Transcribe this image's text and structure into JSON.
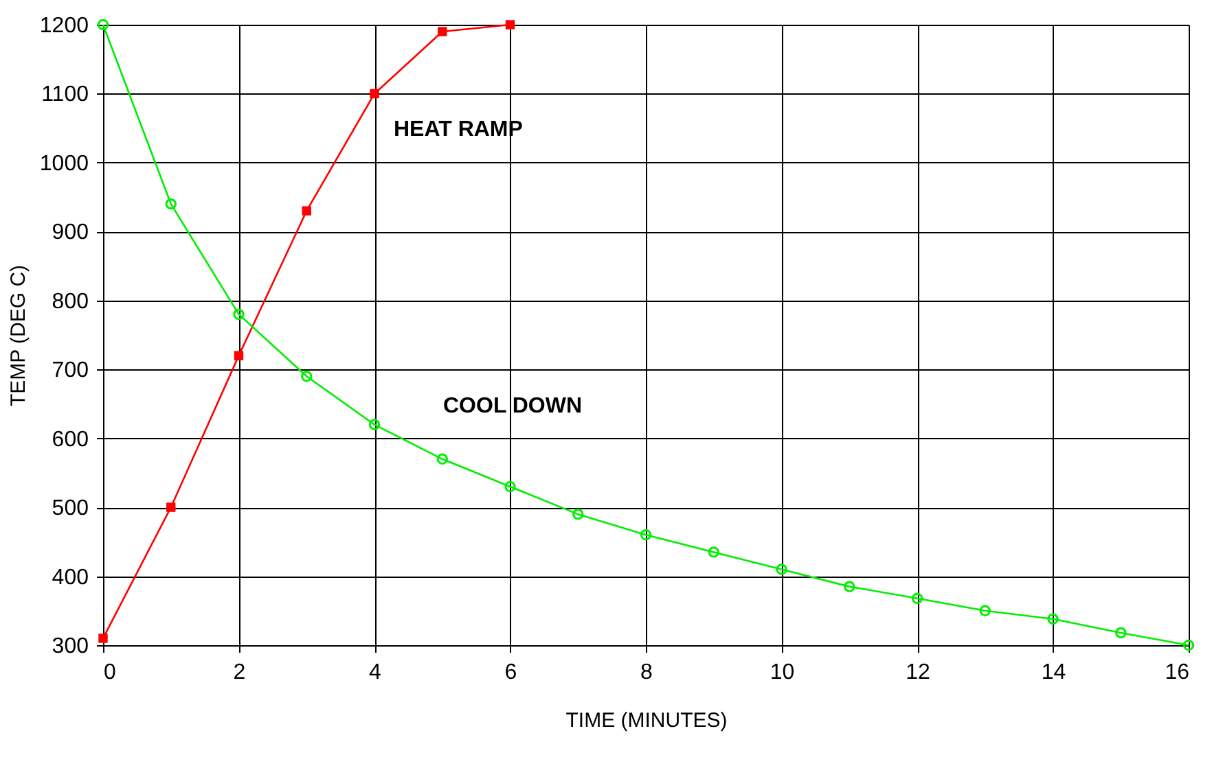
{
  "chart_data": {
    "type": "line",
    "xlabel": "TIME (MINUTES)",
    "ylabel": "TEMP (DEG C)",
    "xlim": [
      0,
      16
    ],
    "xticks": [
      0,
      2,
      4,
      6,
      8,
      10,
      12,
      14,
      16
    ],
    "ylim": [
      300,
      1200
    ],
    "yticks": [
      300,
      400,
      500,
      600,
      700,
      800,
      900,
      1000,
      1100,
      1200
    ],
    "grid": true,
    "legend": false,
    "series": [
      {
        "name": "HEAT RAMP",
        "color": "#ff0000",
        "marker": "square",
        "x": [
          0,
          1,
          2,
          3,
          4,
          5,
          6
        ],
        "values": [
          310,
          500,
          720,
          930,
          1100,
          1190,
          1200
        ]
      },
      {
        "name": "COOL DOWN",
        "color": "#00ee00",
        "marker": "circle",
        "x": [
          0,
          1,
          2,
          3,
          4,
          5,
          6,
          7,
          8,
          9,
          10,
          11,
          12,
          13,
          14,
          15,
          16
        ],
        "values": [
          1200,
          940,
          780,
          690,
          620,
          570,
          530,
          490,
          460,
          435,
          410,
          385,
          368,
          350,
          338,
          318,
          300
        ]
      }
    ]
  }
}
